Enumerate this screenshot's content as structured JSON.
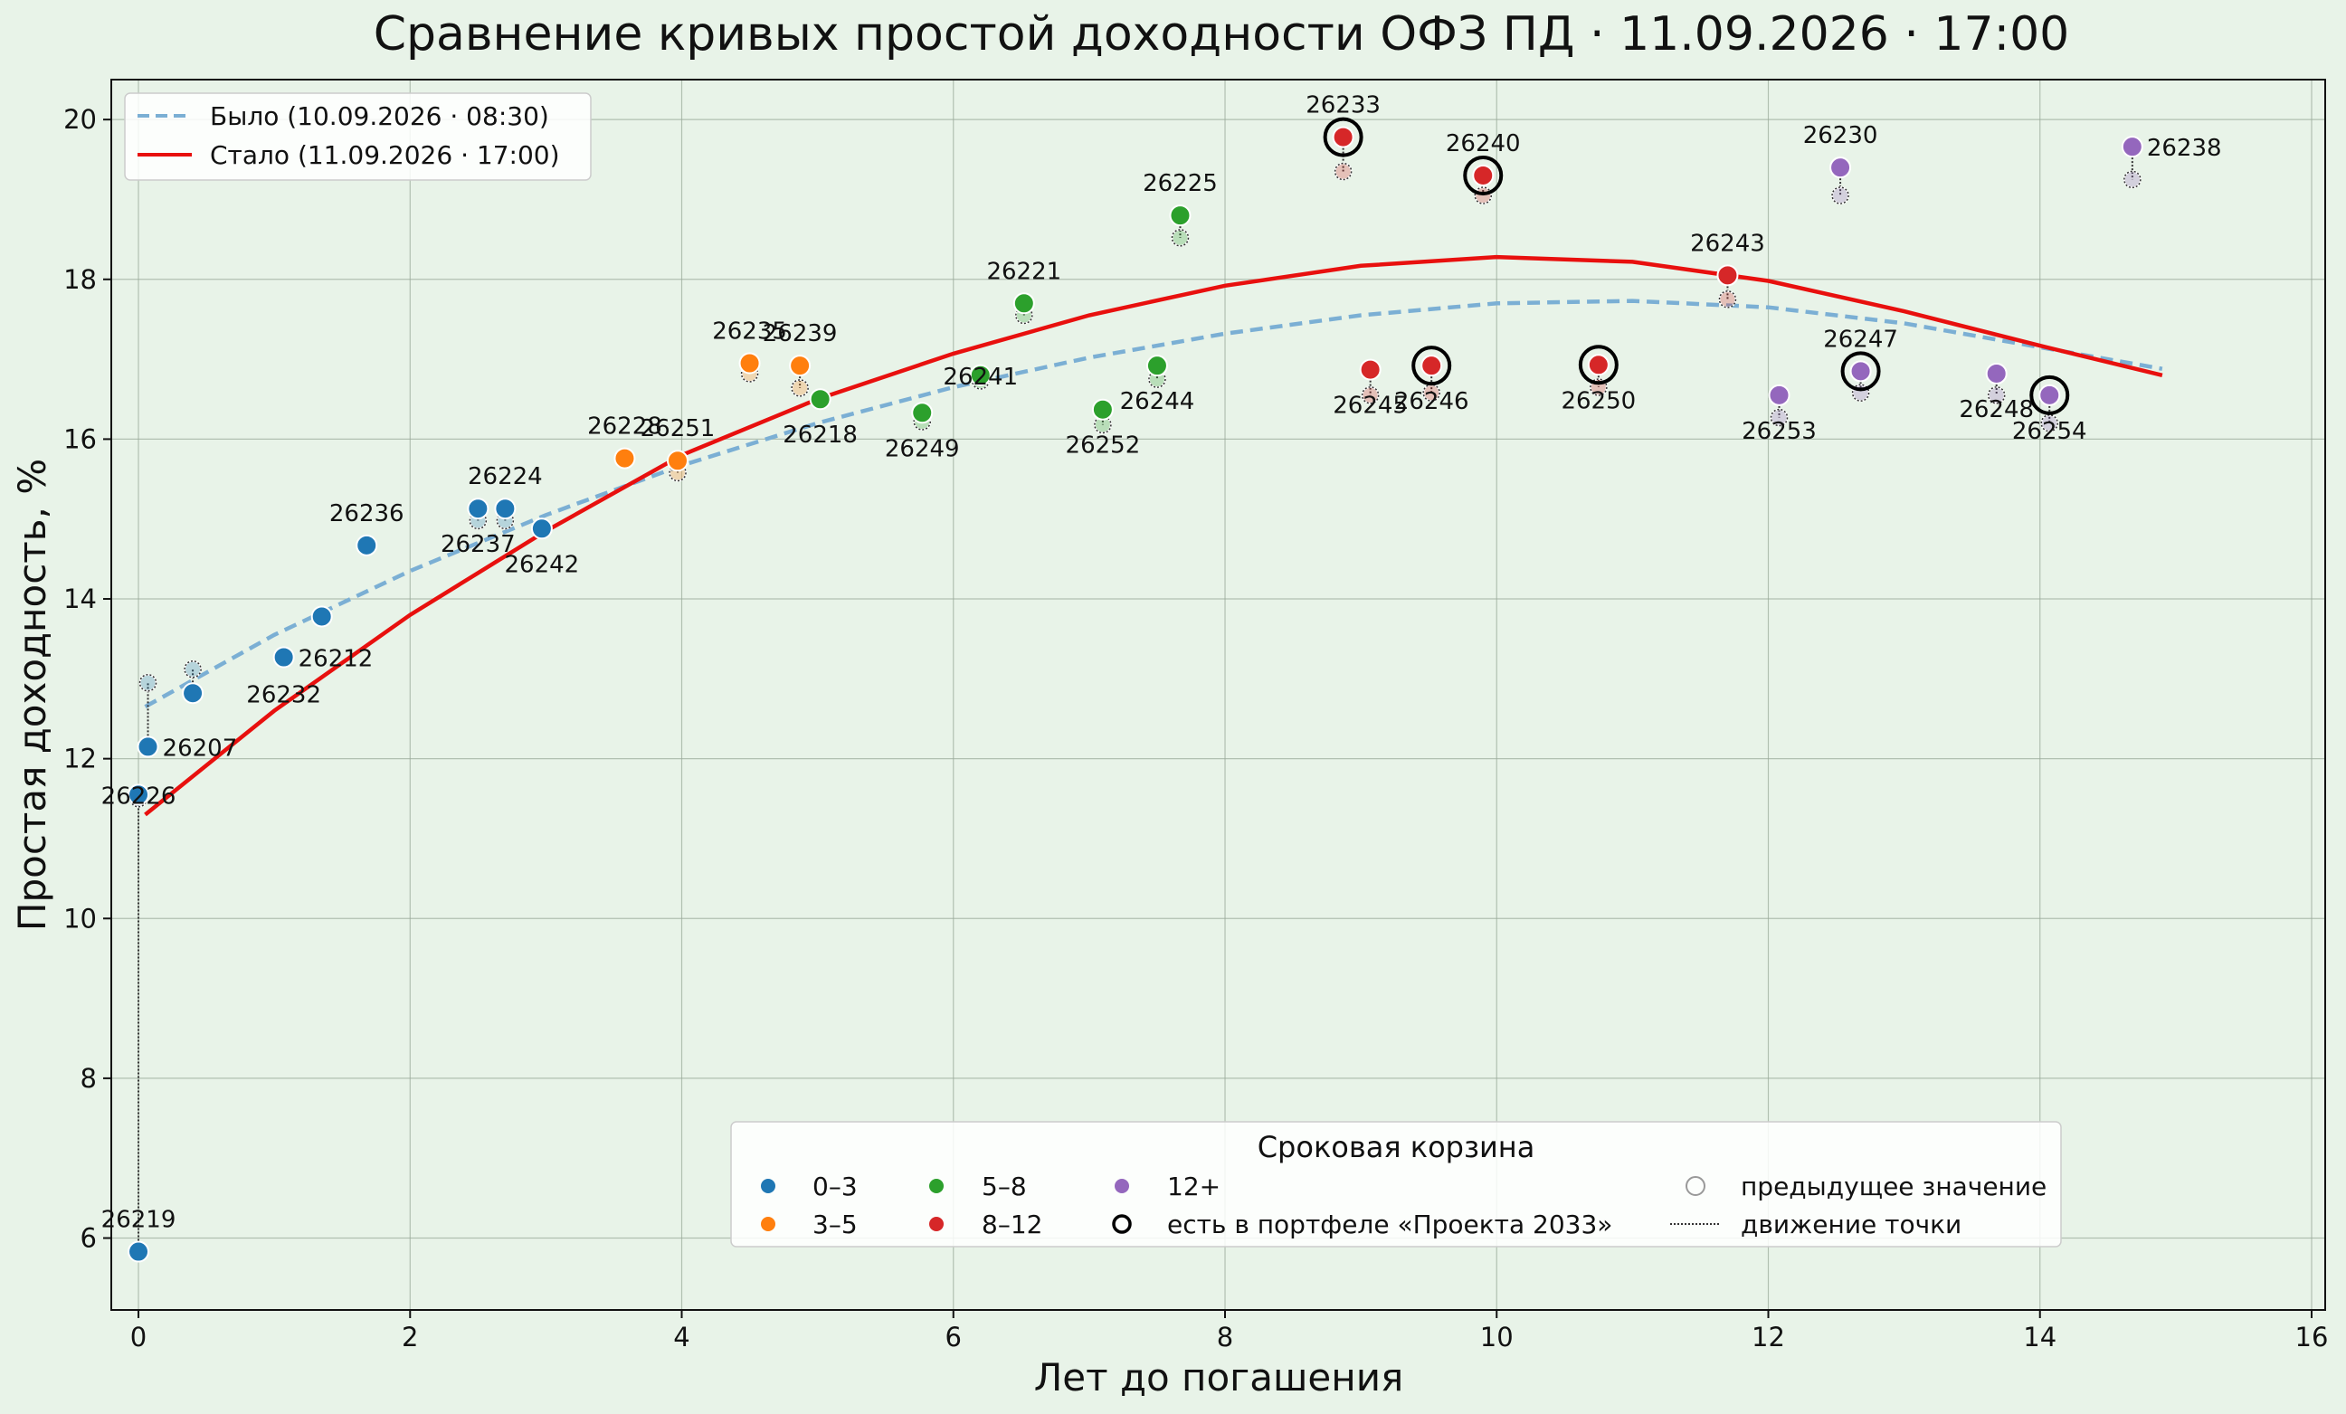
{
  "chart_data": {
    "type": "scatter",
    "title": "Сравнение кривых простой доходности ОФЗ ПД · 11.09.2026 · 17:00",
    "xlabel": "Лет до погашения",
    "ylabel": "Простая доходность, %",
    "xlim": [
      -0.2,
      16.1
    ],
    "ylim": [
      5.1,
      20.5
    ],
    "xticks": [
      0,
      2,
      4,
      6,
      8,
      10,
      12,
      14,
      16
    ],
    "yticks": [
      6,
      8,
      10,
      12,
      14,
      16,
      18,
      20
    ],
    "grid": true,
    "colors": {
      "background": "#e8f3e8",
      "b0_3": "#1f77b4",
      "b3_5": "#ff7f0e",
      "b5_8": "#2ca02c",
      "b8_12": "#d62728",
      "b12p": "#9467bd",
      "curve_before": "#7bafd4",
      "curve_after": "#e8100e"
    },
    "curves": [
      {
        "name": "Было (10.09.2026 · 08:30)",
        "style": "dashed",
        "x": [
          0.05,
          1,
          2,
          3,
          4,
          5,
          6,
          7,
          8,
          9,
          10,
          11,
          12,
          13,
          14,
          14.9
        ],
        "y": [
          12.65,
          13.55,
          14.35,
          15.05,
          15.67,
          16.2,
          16.65,
          17.02,
          17.32,
          17.55,
          17.7,
          17.73,
          17.65,
          17.45,
          17.15,
          16.88
        ]
      },
      {
        "name": "Стало (11.09.2026 · 17:00)",
        "style": "solid",
        "x": [
          0.05,
          1,
          2,
          3,
          4,
          5,
          6,
          7,
          8,
          9,
          10,
          11,
          12,
          13,
          14,
          14.9
        ],
        "y": [
          11.3,
          12.6,
          13.8,
          14.85,
          15.8,
          16.5,
          17.07,
          17.55,
          17.92,
          18.17,
          18.28,
          18.22,
          17.98,
          17.6,
          17.17,
          16.8
        ]
      }
    ],
    "points": [
      {
        "id": "26219",
        "x": 0.0,
        "y": 5.83,
        "prev": 11.5,
        "bucket": "b0_3",
        "label_pos": "above"
      },
      {
        "id": "26226",
        "x": 0.0,
        "y": 11.55,
        "prev": 11.55,
        "bucket": "b0_3",
        "label_pos": "on"
      },
      {
        "id": "26207",
        "x": 0.07,
        "y": 12.15,
        "prev": 12.95,
        "bucket": "b0_3",
        "label_pos": "right"
      },
      {
        "id": "26232",
        "x": 0.4,
        "y": 12.82,
        "prev": 13.12,
        "bucket": "b0_3",
        "label_pos": "none"
      },
      {
        "id": "26212",
        "x": 1.07,
        "y": 13.27,
        "prev": 13.27,
        "bucket": "b0_3",
        "label_pos": "right"
      },
      {
        "id": "",
        "x": 1.35,
        "y": 13.78,
        "prev": 13.78,
        "bucket": "b0_3",
        "label_pos": "none"
      },
      {
        "id": "26236",
        "x": 1.68,
        "y": 14.67,
        "prev": 14.67,
        "bucket": "b0_3",
        "label_pos": "above"
      },
      {
        "id": "26237",
        "x": 2.5,
        "y": 15.13,
        "prev": 14.98,
        "bucket": "b0_3",
        "label_pos": "below"
      },
      {
        "id": "26224",
        "x": 2.7,
        "y": 15.13,
        "prev": 14.98,
        "bucket": "b0_3",
        "label_pos": "above"
      },
      {
        "id": "26242",
        "x": 2.97,
        "y": 14.88,
        "prev": 14.88,
        "bucket": "b0_3",
        "label_pos": "below"
      },
      {
        "id": "26228",
        "x": 3.58,
        "y": 15.76,
        "prev": 15.76,
        "bucket": "b3_5",
        "label_pos": "above"
      },
      {
        "id": "26251",
        "x": 3.97,
        "y": 15.73,
        "prev": 15.58,
        "bucket": "b3_5",
        "label_pos": "above"
      },
      {
        "id": "26235",
        "x": 4.5,
        "y": 16.95,
        "prev": 16.82,
        "bucket": "b3_5",
        "label_pos": "above"
      },
      {
        "id": "26239",
        "x": 4.87,
        "y": 16.92,
        "prev": 16.64,
        "bucket": "b3_5",
        "label_pos": "above"
      },
      {
        "id": "26218",
        "x": 5.02,
        "y": 16.5,
        "prev": 16.5,
        "bucket": "b5_8",
        "label_pos": "below"
      },
      {
        "id": "26249",
        "x": 5.77,
        "y": 16.33,
        "prev": 16.22,
        "bucket": "b5_8",
        "label_pos": "below"
      },
      {
        "id": "26241",
        "x": 6.2,
        "y": 16.8,
        "prev": 16.73,
        "bucket": "b5_8",
        "label_pos": "on"
      },
      {
        "id": "26221",
        "x": 6.52,
        "y": 17.7,
        "prev": 17.55,
        "bucket": "b5_8",
        "label_pos": "above"
      },
      {
        "id": "26252",
        "x": 7.1,
        "y": 16.37,
        "prev": 16.18,
        "bucket": "b5_8",
        "label_pos": "below"
      },
      {
        "id": "26244",
        "x": 7.5,
        "y": 16.92,
        "prev": 16.75,
        "bucket": "b5_8",
        "label_pos": "below"
      },
      {
        "id": "26225",
        "x": 7.67,
        "y": 18.8,
        "prev": 18.52,
        "bucket": "b5_8",
        "label_pos": "above"
      },
      {
        "id": "26233",
        "x": 8.87,
        "y": 19.78,
        "prev": 19.35,
        "bucket": "b8_12",
        "label_pos": "above",
        "portfolio": true
      },
      {
        "id": "26245",
        "x": 9.07,
        "y": 16.87,
        "prev": 16.55,
        "bucket": "b8_12",
        "label_pos": "below"
      },
      {
        "id": "26246",
        "x": 9.52,
        "y": 16.92,
        "prev": 16.58,
        "bucket": "b8_12",
        "label_pos": "below",
        "portfolio": true
      },
      {
        "id": "26240",
        "x": 9.9,
        "y": 19.3,
        "prev": 19.05,
        "bucket": "b8_12",
        "label_pos": "above",
        "portfolio": true
      },
      {
        "id": "26250",
        "x": 10.75,
        "y": 16.93,
        "prev": 16.65,
        "bucket": "b8_12",
        "label_pos": "below",
        "portfolio": true
      },
      {
        "id": "26243",
        "x": 11.7,
        "y": 18.05,
        "prev": 17.75,
        "bucket": "b8_12",
        "label_pos": "above"
      },
      {
        "id": "26253",
        "x": 12.08,
        "y": 16.55,
        "prev": 16.27,
        "bucket": "b12p",
        "label_pos": "below"
      },
      {
        "id": "26230",
        "x": 12.53,
        "y": 19.4,
        "prev": 19.05,
        "bucket": "b12p",
        "label_pos": "above"
      },
      {
        "id": "26247",
        "x": 12.68,
        "y": 16.85,
        "prev": 16.58,
        "bucket": "b12p",
        "label_pos": "above",
        "portfolio": true
      },
      {
        "id": "26248",
        "x": 13.68,
        "y": 16.82,
        "prev": 16.55,
        "bucket": "b12p",
        "label_pos": "below"
      },
      {
        "id": "26254",
        "x": 14.07,
        "y": 16.55,
        "prev": 16.2,
        "bucket": "b12p",
        "label_pos": "below",
        "portfolio": true
      },
      {
        "id": "26238",
        "x": 14.68,
        "y": 19.66,
        "prev": 19.25,
        "bucket": "b12p",
        "label_pos": "right"
      }
    ],
    "legend": {
      "curves_placement": "top-left",
      "buckets_placement": "bottom-center",
      "title": "Сроковая корзина",
      "entries": [
        {
          "key": "b0_3",
          "label": "0–3"
        },
        {
          "key": "b3_5",
          "label": "3–5"
        },
        {
          "key": "b5_8",
          "label": "5–8"
        },
        {
          "key": "b8_12",
          "label": "8–12"
        },
        {
          "key": "b12p",
          "label": "12+"
        },
        {
          "key": "portfolio",
          "label": "есть в портфеле «Проекта 2033»"
        },
        {
          "key": "prev",
          "label": "предыдущее значение"
        },
        {
          "key": "move",
          "label": "движение точки"
        }
      ]
    }
  }
}
